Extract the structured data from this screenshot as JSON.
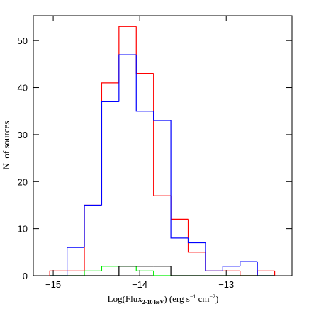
{
  "chart_data": {
    "type": "histogram",
    "xlabel_parts": [
      "Log(Flux",
      "2-10 keV",
      ") (erg s",
      "−1",
      " cm",
      "−2",
      ")"
    ],
    "ylabel": "N. of sources",
    "bins": [
      -15.04,
      -14.84,
      -14.64,
      -14.44,
      -14.24,
      -14.04,
      -13.84,
      -13.64,
      -13.44,
      -13.24,
      -13.04,
      -12.84,
      -12.64,
      -12.44
    ],
    "series": [
      {
        "color": "#ff0000",
        "values": [
          1,
          1,
          15,
          41,
          53,
          43,
          17,
          12,
          5,
          1,
          1,
          0,
          1
        ]
      },
      {
        "color": "#0000ff",
        "values": [
          0,
          6,
          15,
          37,
          47,
          35,
          33,
          8,
          7,
          1,
          2,
          3,
          0
        ]
      },
      {
        "color": "#00ee00",
        "values": [
          0,
          0,
          1,
          2,
          2,
          1,
          0,
          0,
          0,
          0,
          0,
          0,
          0
        ]
      },
      {
        "color": "#000000",
        "values": [
          0,
          0,
          0,
          0,
          2,
          2,
          2,
          0,
          0,
          0,
          0,
          0,
          0
        ]
      }
    ],
    "xlim": [
      -15.23,
      -12.24
    ],
    "ylim": [
      0,
      55.3
    ],
    "xticks": [
      {
        "value": -15,
        "label": "−15"
      },
      {
        "value": -14,
        "label": "−14"
      },
      {
        "value": -13,
        "label": "−13"
      }
    ],
    "yticks": [
      0,
      10,
      20,
      30,
      40,
      50
    ]
  }
}
